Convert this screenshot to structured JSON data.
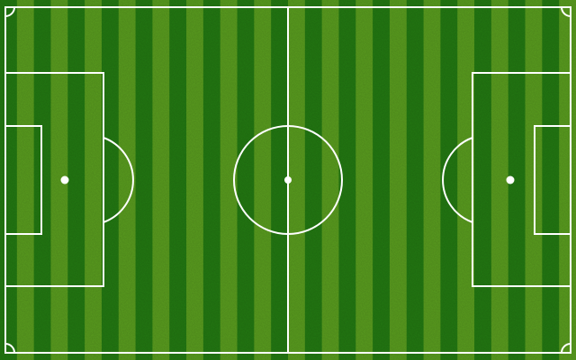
{
  "pitch": {
    "surface": "grass",
    "orientation": "horizontal",
    "stripe_count": 34,
    "colors": {
      "stripe_dark": "#237a12",
      "stripe_light": "#5a9e1f",
      "lines": "#ffffff"
    },
    "icons": {
      "center_spot": "center-spot-icon",
      "left_penalty_spot": "penalty-spot-icon",
      "right_penalty_spot": "penalty-spot-icon"
    }
  }
}
